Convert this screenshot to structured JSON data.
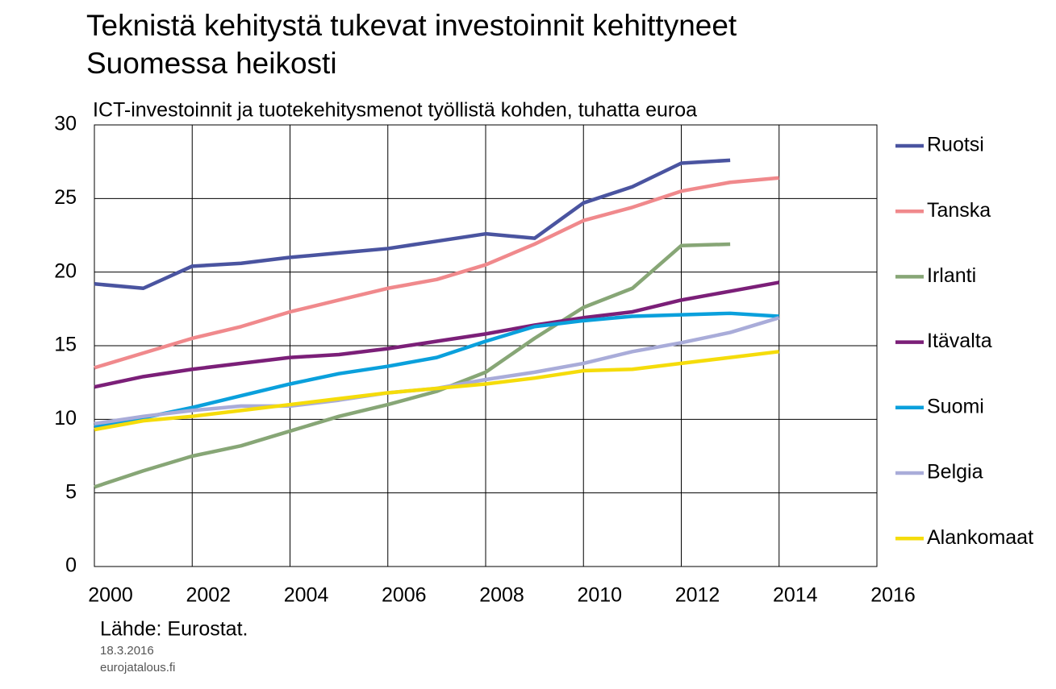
{
  "chart_data": {
    "type": "line",
    "title_lines": [
      "Teknistä kehitystä tukevat investoinnit kehittyneet",
      "Suomessa heikosti"
    ],
    "subtitle": "ICT-investoinnit ja tuotekehitysmenot työllistä kohden, tuhatta euroa",
    "source": "Lähde: Eurostat.",
    "date": "18.3.2016",
    "site": "eurojatalous.fi",
    "x": [
      2000,
      2001,
      2002,
      2003,
      2004,
      2005,
      2006,
      2007,
      2008,
      2009,
      2010,
      2011,
      2012,
      2013,
      2014
    ],
    "xlim": [
      2000,
      2016
    ],
    "xticks": [
      2000,
      2002,
      2004,
      2006,
      2008,
      2010,
      2012,
      2014,
      2016
    ],
    "ylim": [
      0,
      30
    ],
    "yticks": [
      0,
      5,
      10,
      15,
      20,
      25,
      30
    ],
    "grid": true,
    "legend": "right",
    "series": [
      {
        "name": "Ruotsi",
        "color": "#4a54a0",
        "values": [
          19.2,
          18.9,
          20.4,
          20.6,
          21.0,
          21.3,
          21.6,
          22.1,
          22.6,
          22.3,
          24.7,
          25.8,
          27.4,
          27.6,
          null
        ]
      },
      {
        "name": "Tanska",
        "color": "#f0898c",
        "values": [
          13.5,
          14.5,
          15.5,
          16.3,
          17.3,
          18.1,
          18.9,
          19.5,
          20.5,
          21.9,
          23.5,
          24.4,
          25.5,
          26.1,
          26.4
        ]
      },
      {
        "name": "Irlanti",
        "color": "#87a676",
        "values": [
          5.4,
          6.5,
          7.5,
          8.2,
          9.2,
          10.2,
          11.0,
          11.9,
          13.2,
          15.5,
          17.6,
          18.9,
          21.8,
          21.9,
          null
        ]
      },
      {
        "name": "Itävalta",
        "color": "#7b1f78",
        "values": [
          12.2,
          12.9,
          13.4,
          13.8,
          14.2,
          14.4,
          14.8,
          15.3,
          15.8,
          16.4,
          16.9,
          17.3,
          18.1,
          18.7,
          19.3
        ]
      },
      {
        "name": "Suomi",
        "color": "#0aa0dc",
        "values": [
          9.5,
          10.1,
          10.8,
          11.6,
          12.4,
          13.1,
          13.6,
          14.2,
          15.3,
          16.3,
          16.7,
          17.0,
          17.1,
          17.2,
          17.0
        ]
      },
      {
        "name": "Belgia",
        "color": "#a9acd9",
        "values": [
          9.7,
          10.2,
          10.6,
          10.9,
          10.9,
          11.3,
          11.8,
          12.1,
          12.7,
          13.2,
          13.8,
          14.6,
          15.2,
          15.9,
          16.9
        ]
      },
      {
        "name": "Alankomaat",
        "color": "#f5dc0a",
        "values": [
          9.3,
          9.9,
          10.2,
          10.6,
          11.0,
          11.4,
          11.8,
          12.1,
          12.4,
          12.8,
          13.3,
          13.4,
          13.8,
          14.2,
          14.6
        ]
      }
    ]
  }
}
